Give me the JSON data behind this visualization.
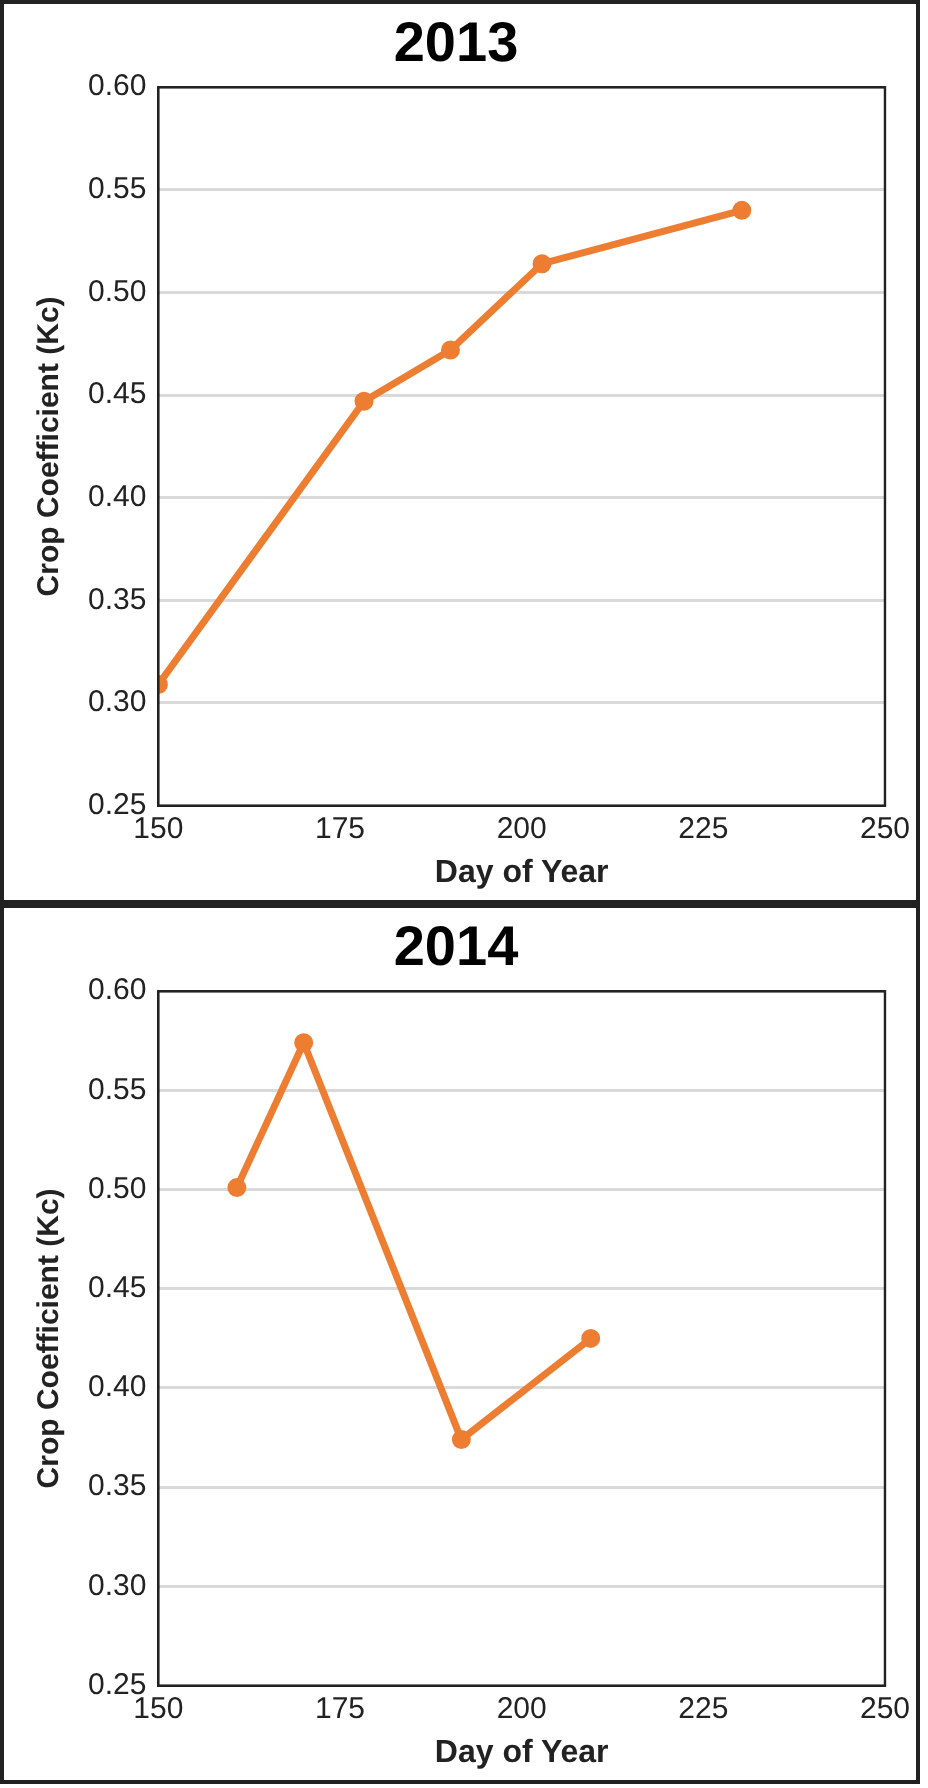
{
  "chart_data": [
    {
      "type": "line",
      "title": "2013",
      "xlabel": "Day of Year",
      "ylabel": "Crop Coefficient (Kc)",
      "x": [
        150,
        178.3,
        190.2,
        202.8,
        230.3
      ],
      "series": [
        {
          "color": "#ed7d31",
          "values": [
            0.309,
            0.447,
            0.472,
            0.514,
            0.54
          ]
        }
      ],
      "xlim": [
        150,
        250
      ],
      "xticks": [
        150,
        175,
        200,
        225,
        250
      ],
      "ylim": [
        0.25,
        0.6
      ],
      "yticks": [
        {
          "value": 0.25,
          "label": "0.25"
        },
        {
          "value": 0.3,
          "label": "0.30"
        },
        {
          "value": 0.35,
          "label": "0.35"
        },
        {
          "value": 0.4,
          "label": "0.40"
        },
        {
          "value": 0.45,
          "label": "0.45"
        },
        {
          "value": 0.5,
          "label": "0.50"
        },
        {
          "value": 0.55,
          "label": "0.55"
        },
        {
          "value": 0.6,
          "label": "0.60"
        }
      ],
      "grid": "y",
      "legend": false,
      "marker": "circle",
      "line_style": "solid"
    },
    {
      "type": "line",
      "title": "2014",
      "xlabel": "Day of Year",
      "ylabel": "Crop Coefficient (Kc)",
      "x": [
        160.8,
        170,
        191.7,
        209.5
      ],
      "series": [
        {
          "color": "#ed7d31",
          "values": [
            0.501,
            0.574,
            0.374,
            0.425
          ]
        }
      ],
      "xlim": [
        150,
        250
      ],
      "xticks": [
        150,
        175,
        200,
        225,
        250
      ],
      "ylim": [
        0.25,
        0.6
      ],
      "yticks": [
        {
          "value": 0.25,
          "label": "0.25"
        },
        {
          "value": 0.3,
          "label": "0.30"
        },
        {
          "value": 0.35,
          "label": "0.35"
        },
        {
          "value": 0.4,
          "label": "0.40"
        },
        {
          "value": 0.45,
          "label": "0.45"
        },
        {
          "value": 0.5,
          "label": "0.50"
        },
        {
          "value": 0.55,
          "label": "0.55"
        },
        {
          "value": 0.6,
          "label": "0.60"
        }
      ],
      "grid": "y",
      "legend": false,
      "marker": "circle",
      "line_style": "solid"
    }
  ]
}
